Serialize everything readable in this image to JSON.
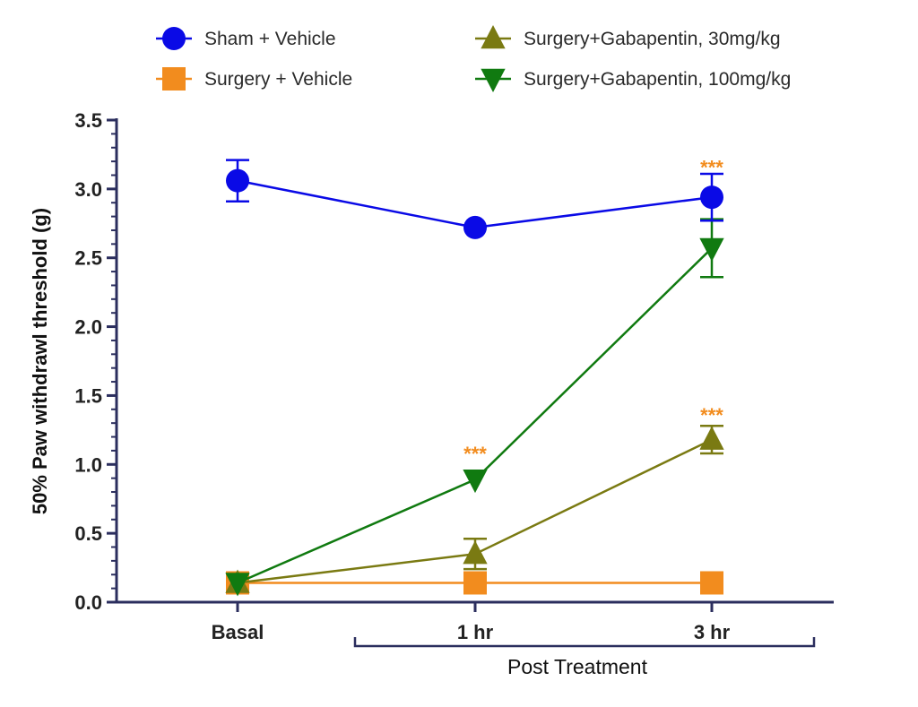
{
  "chart_data": {
    "type": "line",
    "title": "",
    "xlabel": "",
    "ylabel": "50% Paw withdrawl threshold (g)",
    "categories": [
      "Basal",
      "1 hr",
      "3 hr"
    ],
    "group_label": "Post Treatment",
    "ylim": [
      0,
      3.5
    ],
    "yticks": [
      "0.0",
      "0.5",
      "1.0",
      "1.5",
      "2.0",
      "2.5",
      "3.0",
      "3.5"
    ],
    "legend_placement": "top",
    "series": [
      {
        "name": "Sham + Vehicle",
        "color": "#0a0ae6",
        "marker": "circle",
        "values": [
          3.06,
          2.72,
          2.94
        ],
        "errors": [
          0.15,
          0.0,
          0.17
        ]
      },
      {
        "name": "Surgery + Vehicle",
        "color": "#f28c1e",
        "marker": "square",
        "values": [
          0.14,
          0.14,
          0.14
        ],
        "errors": [
          0,
          0,
          0
        ]
      },
      {
        "name": "Surgery+Gabapentin, 30mg/kg",
        "color": "#7a7a12",
        "marker": "triangle-up",
        "values": [
          0.14,
          0.35,
          1.18
        ],
        "errors": [
          0,
          0.11,
          0.1
        ]
      },
      {
        "name": "Surgery+Gabapentin, 100mg/kg",
        "color": "#107a10",
        "marker": "triangle-down",
        "values": [
          0.14,
          0.89,
          2.57
        ],
        "errors": [
          0,
          0,
          0.21
        ]
      }
    ],
    "annotations": [
      {
        "text": "***",
        "category": "1 hr",
        "y": 1.08,
        "color": "#f28c1e"
      },
      {
        "text": "***",
        "category": "3 hr",
        "y": 3.16,
        "color": "#f28c1e"
      },
      {
        "text": "***",
        "category": "3 hr",
        "y": 1.36,
        "color": "#f28c1e"
      }
    ]
  }
}
